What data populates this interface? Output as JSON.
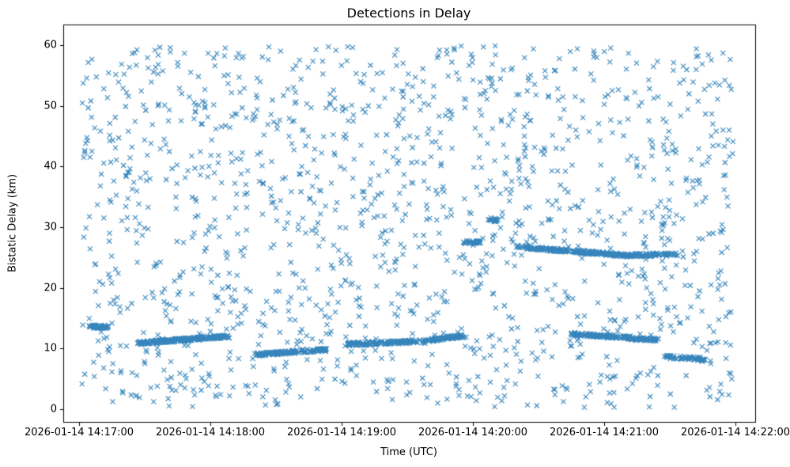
{
  "chart_data": {
    "type": "scatter",
    "title": "Detections in Delay",
    "xlabel": "Time (UTC)",
    "ylabel": "Bistatic Delay (km)",
    "marker": {
      "shape": "x",
      "color": "#1f77b4",
      "size": 6
    },
    "x_range_seconds": [
      0,
      300
    ],
    "x_ticks_seconds": [
      0,
      60,
      120,
      180,
      240,
      300
    ],
    "x_tick_labels": [
      "2026-01-14 14:17:00",
      "2026-01-14 14:18:00",
      "2026-01-14 14:19:00",
      "2026-01-14 14:20:00",
      "2026-01-14 14:21:00",
      "2026-01-14 14:22:00"
    ],
    "ylim": [
      0,
      60
    ],
    "y_ticks": [
      0,
      10,
      20,
      30,
      40,
      50,
      60
    ],
    "y_tick_labels": [
      "0",
      "10",
      "20",
      "30",
      "40",
      "50",
      "60"
    ],
    "grid": false,
    "legend": "none",
    "clutter": {
      "description": "uniform random clutter detections",
      "seed": 42,
      "count": 1500,
      "t_min": 1,
      "t_max": 299,
      "y_min": 0.3,
      "y_max": 59.9
    },
    "tracks": [
      {
        "t0": 4,
        "y0": 13.6,
        "t1": 13,
        "y1": 13.6,
        "count": 70
      },
      {
        "t0": 27,
        "y0": 10.9,
        "t1": 68,
        "y1": 12.0,
        "count": 260
      },
      {
        "t0": 80,
        "y0": 9.0,
        "t1": 100,
        "y1": 9.5,
        "count": 110
      },
      {
        "t0": 102,
        "y0": 9.6,
        "t1": 113,
        "y1": 9.8,
        "count": 50
      },
      {
        "t0": 122,
        "y0": 10.7,
        "t1": 158,
        "y1": 11.2,
        "count": 170
      },
      {
        "t0": 160,
        "y0": 11.4,
        "t1": 176,
        "y1": 12.1,
        "count": 90
      },
      {
        "t0": 176,
        "y0": 27.6,
        "t1": 184,
        "y1": 27.5,
        "count": 40
      },
      {
        "t0": 187,
        "y0": 31.2,
        "t1": 191,
        "y1": 31.2,
        "count": 18
      },
      {
        "t0": 200,
        "y0": 26.8,
        "t1": 213,
        "y1": 26.4,
        "count": 60
      },
      {
        "t0": 213,
        "y0": 26.4,
        "t1": 252,
        "y1": 25.3,
        "count": 220
      },
      {
        "t0": 252,
        "y0": 25.4,
        "t1": 273,
        "y1": 25.5,
        "count": 80
      },
      {
        "t0": 225,
        "y0": 12.4,
        "t1": 252,
        "y1": 11.8,
        "count": 150
      },
      {
        "t0": 252,
        "y0": 11.7,
        "t1": 265,
        "y1": 11.4,
        "count": 60
      },
      {
        "t0": 268,
        "y0": 8.6,
        "t1": 286,
        "y1": 8.3,
        "count": 60
      }
    ]
  }
}
